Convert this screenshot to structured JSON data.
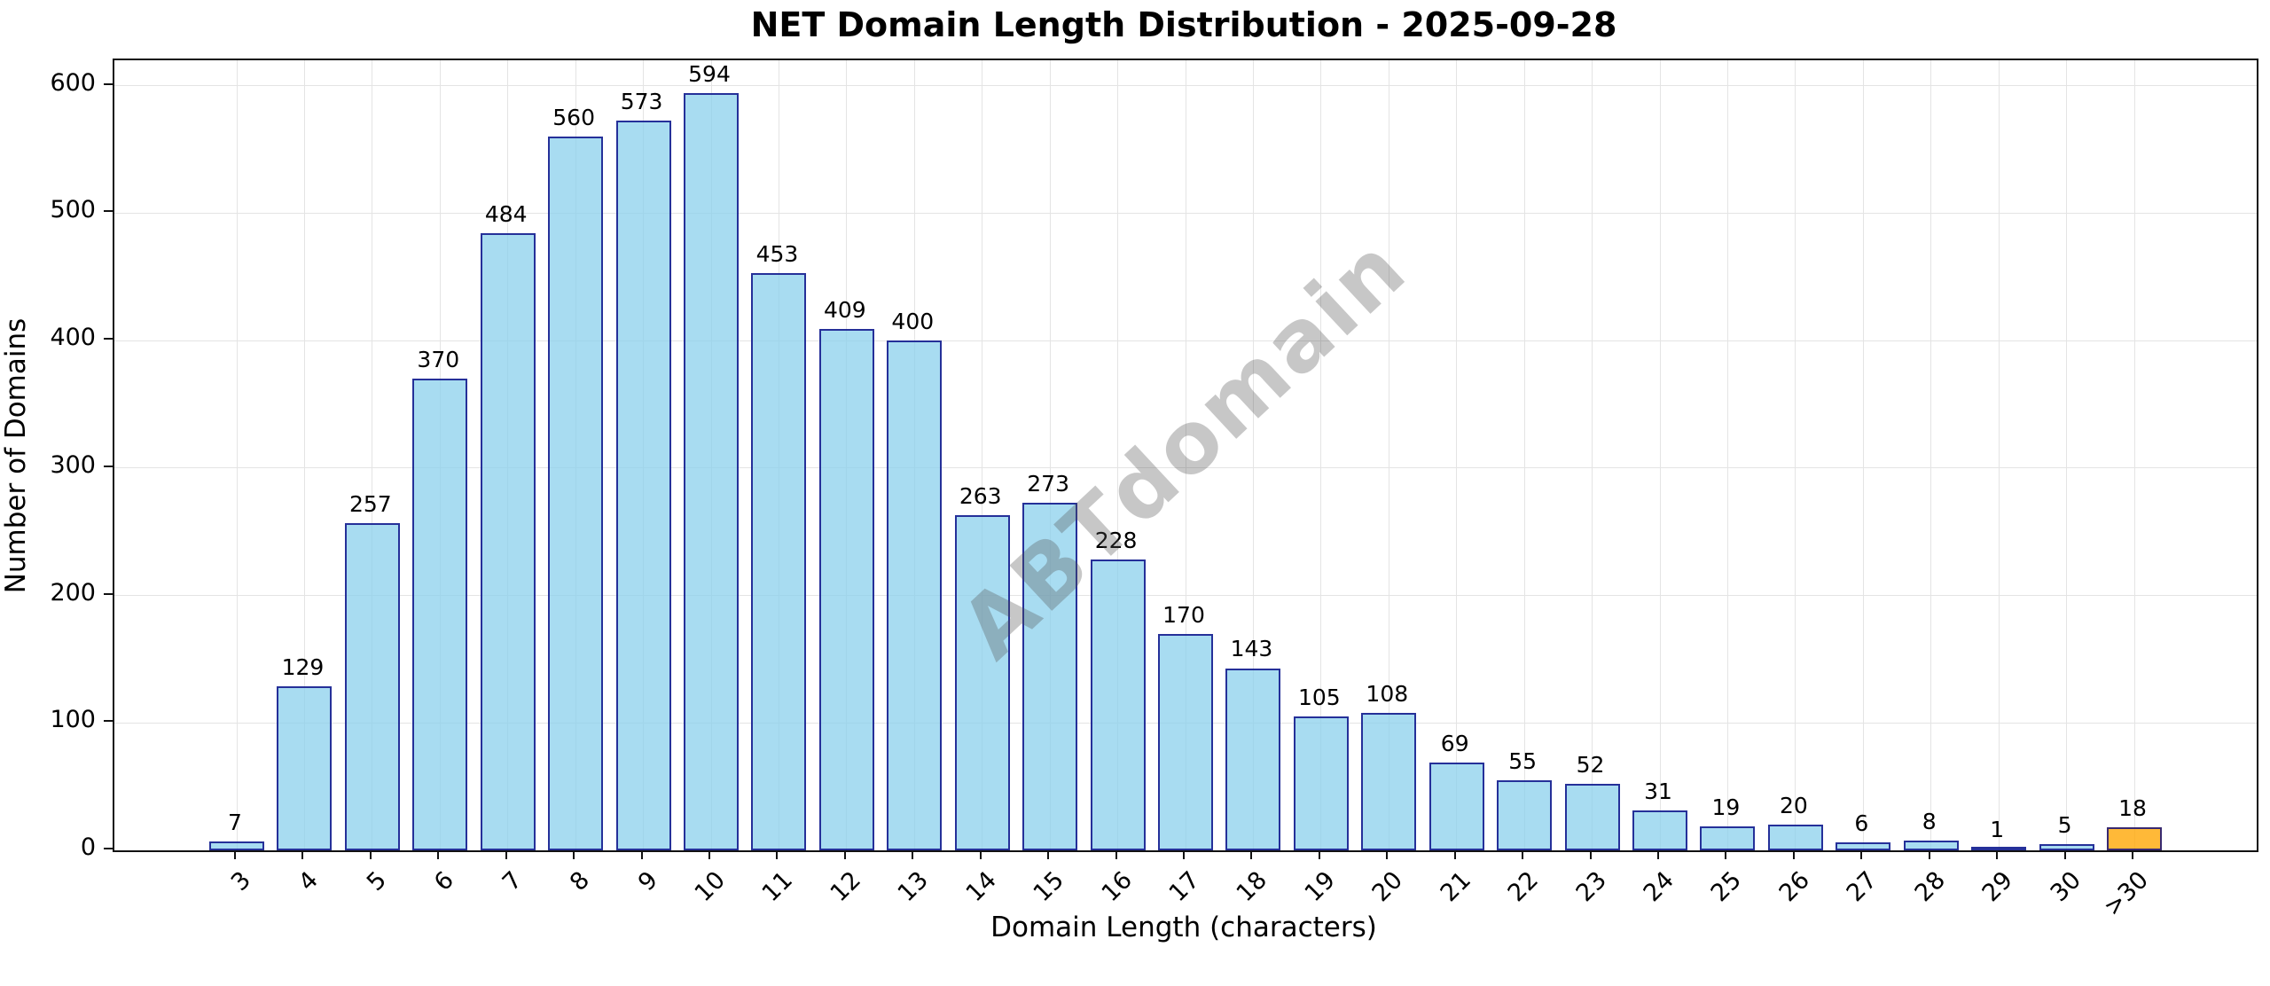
{
  "chart_data": {
    "type": "bar",
    "title": "NET Domain Length Distribution - 2025-09-28",
    "xlabel": "Domain Length (characters)",
    "ylabel": "Number of Domains",
    "watermark": "ABTdomain",
    "categories": [
      "3",
      "4",
      "5",
      "6",
      "7",
      "8",
      "9",
      "10",
      "11",
      "12",
      "13",
      "14",
      "15",
      "16",
      "17",
      "18",
      "19",
      "20",
      "21",
      "22",
      "23",
      "24",
      "25",
      "26",
      "27",
      "28",
      "29",
      "30",
      ">30"
    ],
    "values": [
      7,
      129,
      257,
      370,
      484,
      560,
      573,
      594,
      453,
      409,
      400,
      263,
      273,
      228,
      170,
      143,
      105,
      108,
      69,
      55,
      52,
      31,
      19,
      20,
      6,
      8,
      1,
      5,
      18
    ],
    "ylim": [
      0,
      620
    ],
    "yticks": [
      0,
      100,
      200,
      300,
      400,
      500,
      600
    ],
    "grid": true,
    "legend": "none",
    "bar_fill": "rgba(135,206,235,0.72)",
    "bar_edge": "rgba(0,0,128,0.78)",
    "highlight_index": 28,
    "highlight_fill": "rgba(255,165,0,0.78)",
    "highlight_edge": "rgba(0,0,128,0.78)",
    "grid_color": "#e4e4e4",
    "spine_color": "#111111"
  }
}
